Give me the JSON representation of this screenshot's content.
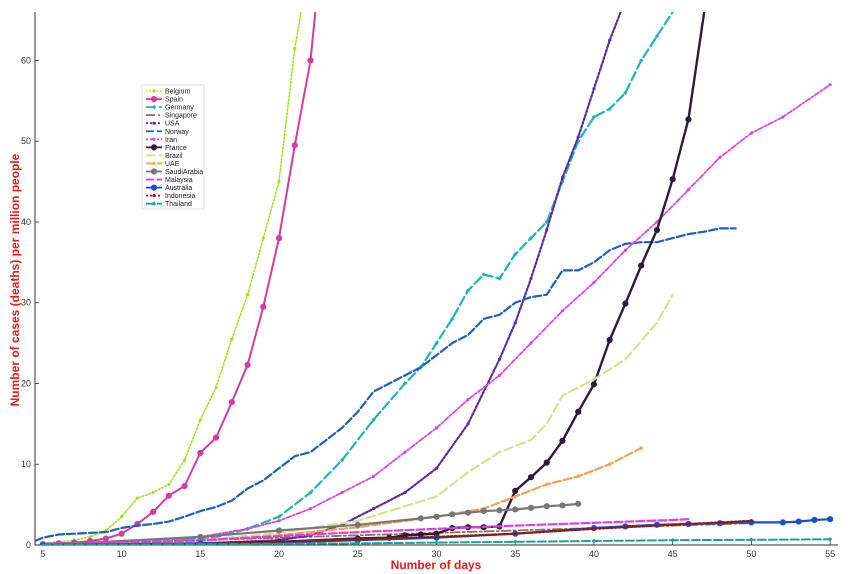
{
  "chart_data": {
    "type": "line",
    "xlabel": "Number of days",
    "ylabel": "Number of cases (deaths) per million people",
    "xlim": [
      4.5,
      55.5
    ],
    "ylim": [
      0,
      66
    ],
    "xticks": [
      5,
      10,
      15,
      20,
      25,
      30,
      35,
      40,
      45,
      50,
      55
    ],
    "yticks": [
      0,
      10,
      20,
      30,
      40,
      50,
      60
    ],
    "grid": false,
    "legend_position": "upper-left",
    "series": [
      {
        "name": "Belgium",
        "color": "#99e619",
        "dash": "1.5,2",
        "width": 1.6,
        "marker": "small-circle",
        "x": [
          5,
          6,
          7,
          8,
          9,
          10,
          11,
          12,
          13,
          14,
          15,
          16,
          17,
          18,
          19,
          20,
          21,
          21.4
        ],
        "y": [
          0.2,
          0.4,
          0.6,
          1.0,
          1.8,
          3.5,
          5.8,
          6.5,
          7.5,
          10.5,
          15.5,
          19.5,
          25.5,
          31,
          38,
          45,
          61.5,
          66
        ]
      },
      {
        "name": "Spain",
        "color": "#d63aa0",
        "dash": "",
        "width": 2,
        "marker": "circle",
        "x": [
          5,
          6,
          7,
          8,
          9,
          10,
          11,
          12,
          13,
          14,
          15,
          16,
          17,
          18,
          19,
          20,
          21,
          22,
          22.3
        ],
        "y": [
          0.1,
          0.2,
          0.3,
          0.5,
          0.8,
          1.4,
          2.6,
          4.1,
          6.1,
          7.3,
          11.4,
          13.3,
          17.7,
          22.3,
          29.5,
          38,
          49.5,
          60,
          66
        ]
      },
      {
        "name": "Germany",
        "color": "#1fb5b5",
        "dash": "9,4",
        "width": 2.2,
        "marker": "small-diamond",
        "x": [
          5,
          8,
          10,
          12,
          14,
          16,
          18,
          20,
          22,
          24,
          26,
          28,
          29,
          30,
          31,
          32,
          33,
          34,
          35,
          36,
          37,
          38,
          39,
          40,
          41,
          42,
          43,
          44,
          45
        ],
        "y": [
          0.1,
          0.2,
          0.3,
          0.5,
          0.7,
          1.0,
          2.0,
          3.5,
          6.5,
          10.5,
          15.5,
          20,
          22,
          25,
          28,
          31.5,
          33.5,
          33,
          36,
          38,
          40,
          45,
          50,
          53,
          54,
          56,
          60,
          63,
          66
        ]
      },
      {
        "name": "Singapore",
        "color": "#8a7453",
        "dash": "9,3,2,3",
        "width": 1.8,
        "marker": "none",
        "x": [
          5,
          15,
          25,
          35,
          45,
          50
        ],
        "y": [
          0.1,
          0.6,
          1.2,
          1.8,
          2.4,
          2.7
        ]
      },
      {
        "name": "USA",
        "color": "#5b2ca8",
        "dash": "2,2",
        "width": 2.2,
        "marker": "small-circle",
        "x": [
          5,
          10,
          15,
          20,
          22,
          24,
          26,
          28,
          30,
          32,
          34,
          35,
          36,
          37,
          38,
          39,
          40,
          41,
          41.7
        ],
        "y": [
          0,
          0.1,
          0.2,
          0.6,
          1.2,
          2.5,
          4.5,
          6.5,
          9.5,
          15,
          23,
          27.5,
          33,
          39,
          45.5,
          50.5,
          56.5,
          62.5,
          66
        ]
      },
      {
        "name": "Norway",
        "color": "#1f5fbf",
        "dash": "8,3",
        "width": 2.2,
        "marker": "none",
        "x": [
          4.5,
          5,
          6,
          7,
          8,
          9,
          10,
          11,
          12,
          13,
          14,
          15,
          16,
          17,
          18,
          19,
          20,
          21,
          22,
          23,
          24,
          25,
          26,
          27,
          28,
          29,
          30,
          31,
          32,
          33,
          34,
          35,
          36,
          37,
          38,
          39,
          40,
          41,
          42,
          43,
          44,
          45,
          46,
          47,
          48,
          49
        ],
        "y": [
          0.5,
          0.9,
          1.3,
          1.4,
          1.5,
          1.6,
          2.1,
          2.4,
          2.6,
          2.9,
          3.5,
          4.2,
          4.7,
          5.5,
          7,
          8,
          9.5,
          11,
          11.5,
          13,
          14.5,
          16.5,
          19,
          20,
          21,
          22,
          23.5,
          25,
          26,
          28,
          28.5,
          30,
          30.7,
          31,
          34,
          34,
          35,
          36.5,
          37.3,
          37.5,
          37.5,
          38,
          38.5,
          38.8,
          39.2,
          39.2
        ]
      },
      {
        "name": "Iran",
        "color": "#dd44dd",
        "dash": "2,2,5,2",
        "width": 1.8,
        "marker": "small-circle",
        "x": [
          5,
          10,
          15,
          18,
          20,
          22,
          24,
          26,
          28,
          30,
          32,
          34,
          36,
          38,
          40,
          42,
          44,
          46,
          48,
          50,
          52,
          55
        ],
        "y": [
          0.2,
          0.4,
          1.0,
          2.0,
          3.0,
          4.5,
          6.5,
          8.5,
          11.5,
          14.5,
          18,
          21,
          25,
          29,
          32.5,
          36.5,
          40,
          44,
          48,
          51,
          53,
          57
        ]
      },
      {
        "name": "France",
        "color": "#2d1b3d",
        "dash": "",
        "width": 2.4,
        "marker": "circle",
        "x": [
          5,
          10,
          15,
          20,
          25,
          27,
          28,
          29,
          30,
          31,
          32,
          33,
          34,
          35,
          36,
          37,
          38,
          39,
          40,
          41,
          42,
          43,
          44,
          45,
          46,
          47
        ],
        "y": [
          0,
          0,
          0.2,
          0.4,
          0.8,
          0.9,
          1.2,
          1.3,
          1.4,
          2.1,
          2.2,
          2.2,
          2.3,
          6.7,
          8.4,
          10.2,
          12.9,
          16.5,
          19.9,
          25.4,
          29.9,
          34.6,
          39,
          45.3,
          52.7,
          66
        ]
      },
      {
        "name": "Brazil",
        "color": "#d4e28c",
        "dash": "9,4",
        "width": 2.2,
        "marker": "none",
        "x": [
          5,
          15,
          20,
          25,
          30,
          32,
          34,
          36,
          37,
          38,
          40,
          42,
          44,
          45
        ],
        "y": [
          0,
          0.6,
          1.5,
          3,
          6,
          9,
          11.5,
          13,
          15,
          18.5,
          20.5,
          23,
          27.5,
          31
        ]
      },
      {
        "name": "UAE",
        "color": "#f5a052",
        "dash": "8,3",
        "width": 2.2,
        "marker": "small-diamond",
        "x": [
          5,
          15,
          20,
          25,
          30,
          33,
          35,
          37,
          39,
          41,
          43
        ],
        "y": [
          0,
          0.5,
          1.2,
          2.2,
          3.5,
          4.5,
          6,
          7.5,
          8.5,
          10,
          12
        ]
      },
      {
        "name": "SaudiArabia",
        "color": "#777777",
        "dash": "",
        "width": 2.2,
        "marker": "circle",
        "x": [
          5,
          15,
          20,
          25,
          29,
          30,
          31,
          32,
          33,
          34,
          35,
          36,
          37,
          38,
          39
        ],
        "y": [
          0,
          1.0,
          1.8,
          2.5,
          3.3,
          3.5,
          3.8,
          4.0,
          4.2,
          4.3,
          4.4,
          4.6,
          4.8,
          4.9,
          5.1
        ]
      },
      {
        "name": "Malaysia",
        "color": "#e23ce6",
        "dash": "8,3",
        "width": 2.2,
        "marker": "none",
        "x": [
          5,
          15,
          25,
          35,
          45,
          46
        ],
        "y": [
          0,
          0.6,
          1.6,
          2.4,
          3.1,
          3.2
        ]
      },
      {
        "name": "Australia",
        "color": "#1b4fc9",
        "dash": "",
        "width": 2.2,
        "marker": "circle",
        "x": [
          5,
          15,
          20,
          25,
          30,
          35,
          40,
          42,
          44,
          46,
          48,
          50,
          52,
          53,
          54,
          55
        ],
        "y": [
          0,
          0.2,
          0.3,
          0.6,
          0.9,
          1.4,
          2.1,
          2.3,
          2.5,
          2.6,
          2.7,
          2.8,
          2.8,
          2.9,
          3.1,
          3.2
        ]
      },
      {
        "name": "Indonesia",
        "color": "#8b1a1a",
        "dash": "2,2",
        "width": 2.2,
        "marker": "small-circle",
        "x": [
          5,
          15,
          20,
          25,
          30,
          35,
          40,
          45,
          50
        ],
        "y": [
          0,
          0.1,
          0.4,
          0.7,
          1.0,
          1.4,
          2.0,
          2.5,
          3.0
        ]
      },
      {
        "name": "Thailand",
        "color": "#16a39a",
        "dash": "8,3",
        "width": 2.0,
        "marker": "small-diamond",
        "x": [
          5,
          15,
          25,
          30,
          35,
          40,
          45,
          50,
          55
        ],
        "y": [
          0,
          0.1,
          0.2,
          0.3,
          0.4,
          0.5,
          0.6,
          0.65,
          0.7
        ]
      }
    ]
  }
}
